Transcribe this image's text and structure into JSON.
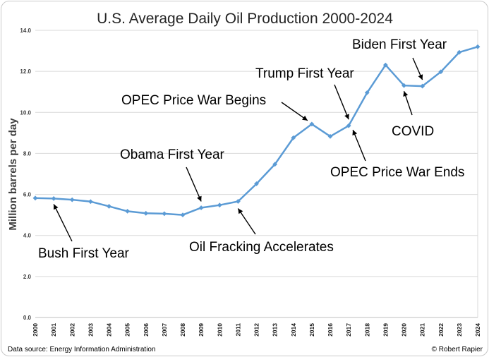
{
  "chart_data": {
    "type": "line",
    "title": "U.S. Average Daily Oil Production 2000-2024",
    "ylabel": "Million barrels per day",
    "xlabel": "",
    "ylim": [
      0,
      14
    ],
    "yticks": [
      "0.0",
      "2.0",
      "4.0",
      "6.0",
      "8.0",
      "10.0",
      "12.0",
      "14.0"
    ],
    "grid": true,
    "legend": "none",
    "color": "#5b9bd5",
    "categories": [
      "2000",
      "2001",
      "2002",
      "2003",
      "2004",
      "2005",
      "2006",
      "2007",
      "2008",
      "2009",
      "2010",
      "2011",
      "2012",
      "2013",
      "2014",
      "2015",
      "2016",
      "2017",
      "2018",
      "2019",
      "2020",
      "2021",
      "2022",
      "2023",
      "2024"
    ],
    "series": [
      {
        "values": [
          5.82,
          5.8,
          5.74,
          5.65,
          5.42,
          5.18,
          5.08,
          5.06,
          5.0,
          5.35,
          5.48,
          5.66,
          6.52,
          7.47,
          8.76,
          9.43,
          8.83,
          9.35,
          10.96,
          12.31,
          11.31,
          11.28,
          11.98,
          12.93,
          13.2
        ]
      }
    ],
    "annotations": [
      {
        "text": "Bush First Year",
        "year": "2001"
      },
      {
        "text": "Obama First Year",
        "year": "2009"
      },
      {
        "text": "Oil Fracking Accelerates",
        "year": "2011"
      },
      {
        "text": "OPEC Price War Begins",
        "year": "2015"
      },
      {
        "text": "Trump First Year",
        "year": "2017"
      },
      {
        "text": "OPEC Price War Ends",
        "year": "2017"
      },
      {
        "text": "Biden First Year",
        "year": "2021"
      },
      {
        "text": "COVID",
        "year": "2020"
      }
    ]
  },
  "footer": {
    "source": "Data source: Energy Information Administration",
    "credit": "© Robert Rapier"
  }
}
